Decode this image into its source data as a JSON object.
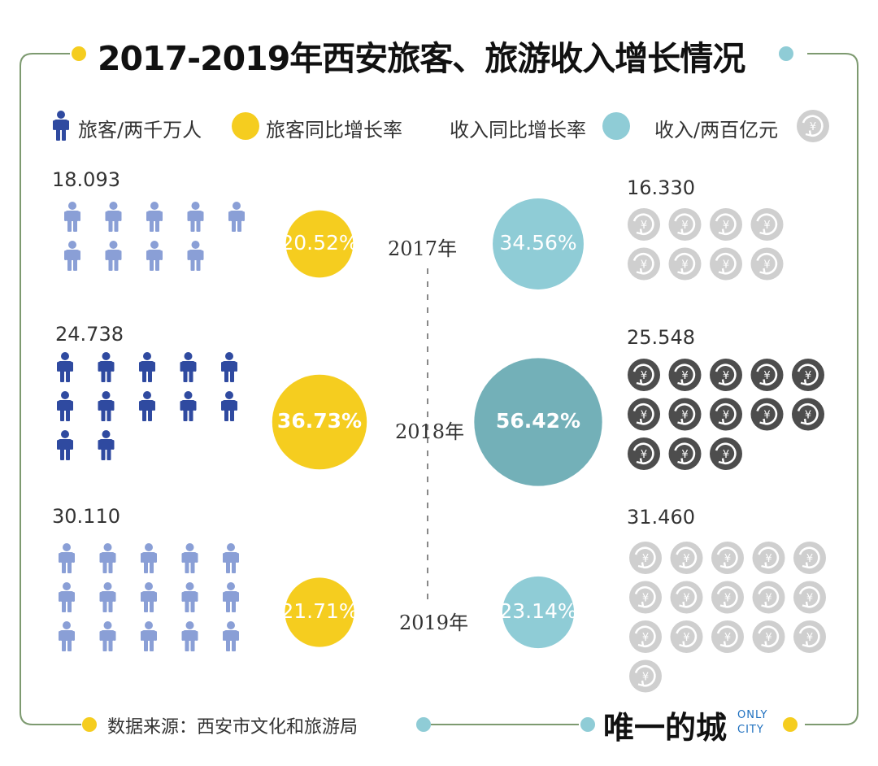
{
  "title": "2017-2019年西安旅客、旅游收入增长情况",
  "legend": {
    "tourists": "旅客/两千万人",
    "tourist_growth": "旅客同比增长率",
    "income_growth": "收入同比增长率",
    "income": "收入/两百亿元"
  },
  "source": "数据来源：西安市文化和旅游局",
  "brand": {
    "name": "唯一的城",
    "en_line1": "ONLY",
    "en_line2": "CITY"
  },
  "icon_names": {
    "person": "person-icon",
    "coin": "yuan-coin-icon"
  },
  "colors": {
    "person_light": "#8a9fd6",
    "person_dark": "#2f4aa0",
    "coin_light": "#cfcfcf",
    "coin_dark": "#4d4d4d",
    "tourist_rate": "#f5cd1f",
    "income_rate_light": "#8fccd6",
    "income_rate_dark": "#73b0b8",
    "frame": "#7d9a70",
    "dot_yellow": "#f5cd1f",
    "dot_teal": "#8fccd6"
  },
  "chart_data": {
    "type": "table",
    "years": [
      "2017年",
      "2018年",
      "2019年"
    ],
    "tourists_label": [
      "18.093",
      "24.738",
      "30.110"
    ],
    "tourists": [
      18.093,
      24.738,
      30.11
    ],
    "tourist_growth_pct": [
      "20.52%",
      "36.73%",
      "21.71%"
    ],
    "tourist_growth": [
      20.52,
      36.73,
      21.71
    ],
    "income_growth_pct": [
      "34.56%",
      "56.42%",
      "23.14%"
    ],
    "income_growth": [
      34.56,
      56.42,
      23.14
    ],
    "income_label": [
      "16.330",
      "25.548",
      "31.460"
    ],
    "income": [
      16.33,
      25.548,
      31.46
    ],
    "person_icon_counts": [
      9,
      12,
      15
    ],
    "coin_icon_counts": [
      8,
      13,
      16
    ],
    "highlight_year_index": 1
  }
}
